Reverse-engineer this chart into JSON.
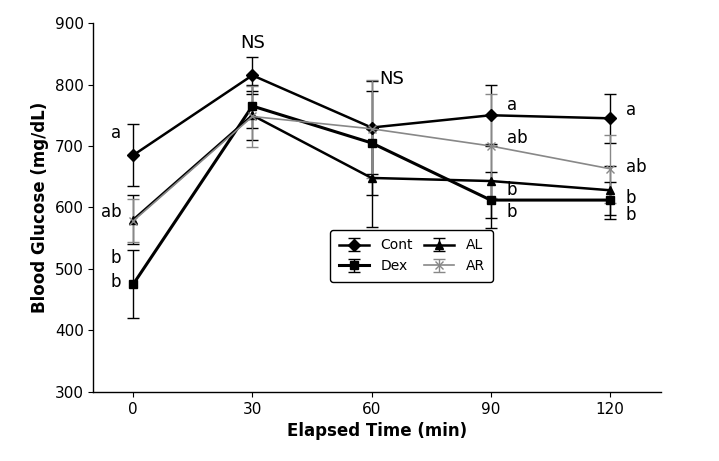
{
  "x": [
    0,
    30,
    60,
    90,
    120
  ],
  "series": {
    "Cont": {
      "y": [
        685,
        815,
        730,
        750,
        745
      ],
      "yerr": [
        50,
        30,
        75,
        50,
        40
      ],
      "marker": "D",
      "color": "#000000",
      "linewidth": 1.8,
      "markersize": 6,
      "linestyle": "-"
    },
    "Dex": {
      "y": [
        475,
        765,
        705,
        612,
        612
      ],
      "yerr": [
        55,
        35,
        85,
        45,
        30
      ],
      "marker": "s",
      "color": "#000000",
      "linewidth": 2.2,
      "markersize": 6,
      "linestyle": "-"
    },
    "AL": {
      "y": [
        580,
        750,
        648,
        643,
        628
      ],
      "yerr": [
        40,
        40,
        80,
        60,
        40
      ],
      "marker": "^",
      "color": "#000000",
      "linewidth": 1.8,
      "markersize": 6,
      "linestyle": "-"
    },
    "AR": {
      "y": [
        578,
        748,
        728,
        700,
        663
      ],
      "yerr": [
        35,
        50,
        80,
        85,
        55
      ],
      "marker": "x",
      "color": "#888888",
      "linewidth": 1.2,
      "markersize": 6,
      "linestyle": "-"
    }
  },
  "xlabel": "Elapsed Time (min)",
  "ylabel": "Blood Glucose (mg/dL)",
  "ylim": [
    300,
    900
  ],
  "yticks": [
    300,
    400,
    500,
    600,
    700,
    800,
    900
  ],
  "xticks": [
    0,
    30,
    60,
    90,
    120
  ],
  "fontsize_axis_label": 12,
  "fontsize_tick": 11,
  "fontsize_legend": 10,
  "fontsize_annot": 12,
  "ns_fontsize": 13
}
